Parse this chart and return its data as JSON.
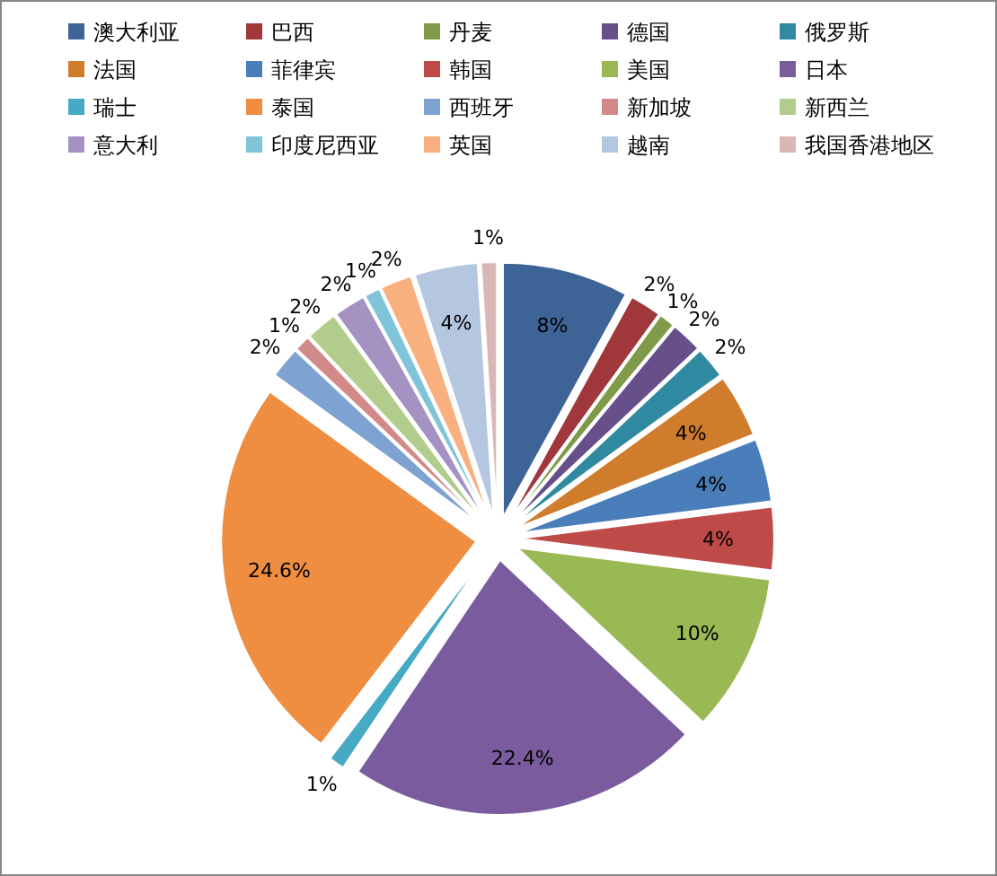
{
  "chart_data": {
    "type": "pie",
    "categories": [
      "澳大利亚",
      "巴西",
      "丹麦",
      "德国",
      "俄罗斯",
      "法国",
      "菲律宾",
      "韩国",
      "美国",
      "日本",
      "瑞士",
      "泰国",
      "西班牙",
      "新加坡",
      "新西兰",
      "意大利",
      "印度尼西亚",
      "英国",
      "越南",
      "我国香港地区"
    ],
    "values": [
      8,
      2,
      1,
      2,
      2,
      4,
      4,
      4,
      10,
      22.4,
      1,
      24.6,
      2,
      1,
      2,
      2,
      1,
      2,
      4,
      1
    ],
    "colors": [
      "#3e6497",
      "#a0373a",
      "#7f9a48",
      "#674f8a",
      "#2f8aa1",
      "#d07c2d",
      "#4a7ebb",
      "#be4b48",
      "#98b954",
      "#7a5c9e",
      "#46aac5",
      "#ef8e40",
      "#7ea2d1",
      "#d18a88",
      "#b2cd8b",
      "#a492c2",
      "#7fc4d9",
      "#f8b07f",
      "#b5c6e0",
      "#dab7b7"
    ],
    "value_labels": [
      "8%",
      "2%",
      "1%",
      "2%",
      "2%",
      "4%",
      "4%",
      "4%",
      "10%",
      "22.4%",
      "1%",
      "24.6%",
      "2%",
      "1%",
      "2%",
      "2%",
      "1%",
      "2%",
      "4%",
      "1%"
    ],
    "legend": "top"
  }
}
